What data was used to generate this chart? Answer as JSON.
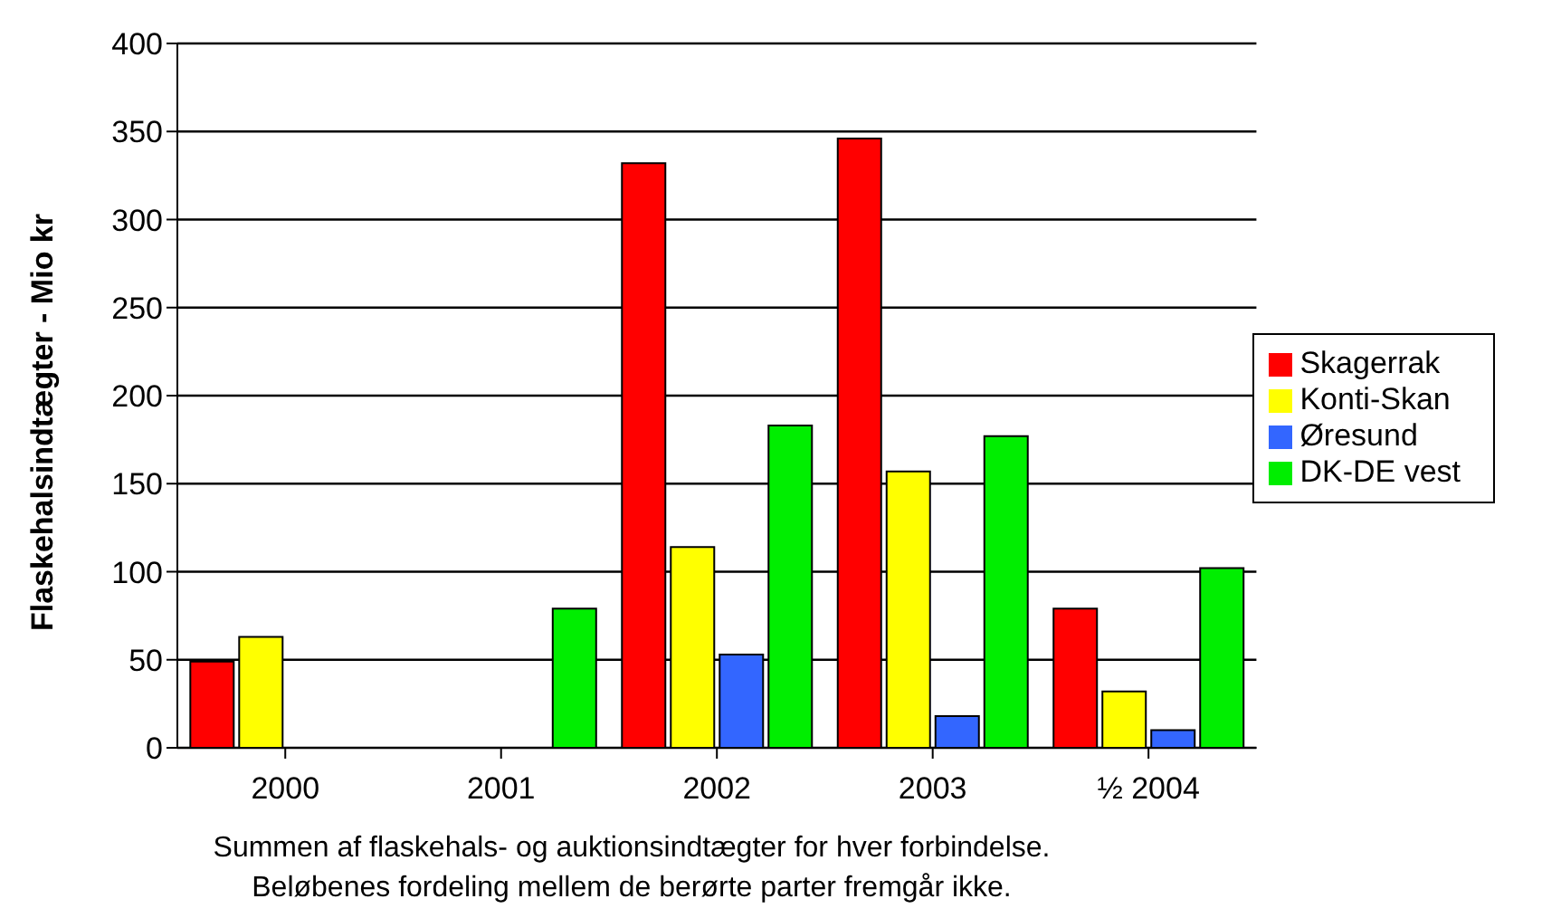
{
  "chart_data": {
    "type": "bar",
    "ylabel": "Flaskehalsindtægter - Mio kr",
    "categories": [
      "2000",
      "2001",
      "2002",
      "2003",
      "½ 2004"
    ],
    "series": [
      {
        "name": "Skagerrak",
        "color": "#ff0000",
        "values": [
          49,
          null,
          332,
          346,
          79
        ]
      },
      {
        "name": "Konti-Skan",
        "color": "#ffff00",
        "values": [
          63,
          null,
          114,
          157,
          32
        ]
      },
      {
        "name": "Øresund",
        "color": "#3366ff",
        "values": [
          null,
          null,
          53,
          18,
          10
        ]
      },
      {
        "name": "DK-DE vest",
        "color": "#00ee00",
        "values": [
          null,
          79,
          183,
          177,
          102
        ]
      }
    ],
    "ylim": [
      0,
      400
    ],
    "yticks": [
      0,
      50,
      100,
      150,
      200,
      250,
      300,
      350,
      400
    ],
    "grid": "y",
    "legend": "right",
    "annotations": [
      "Summen af flaskehals- og auktionsindtægter for hver forbindelse.",
      "Beløbenes fordeling mellem de berørte parter fremgår ikke."
    ]
  }
}
